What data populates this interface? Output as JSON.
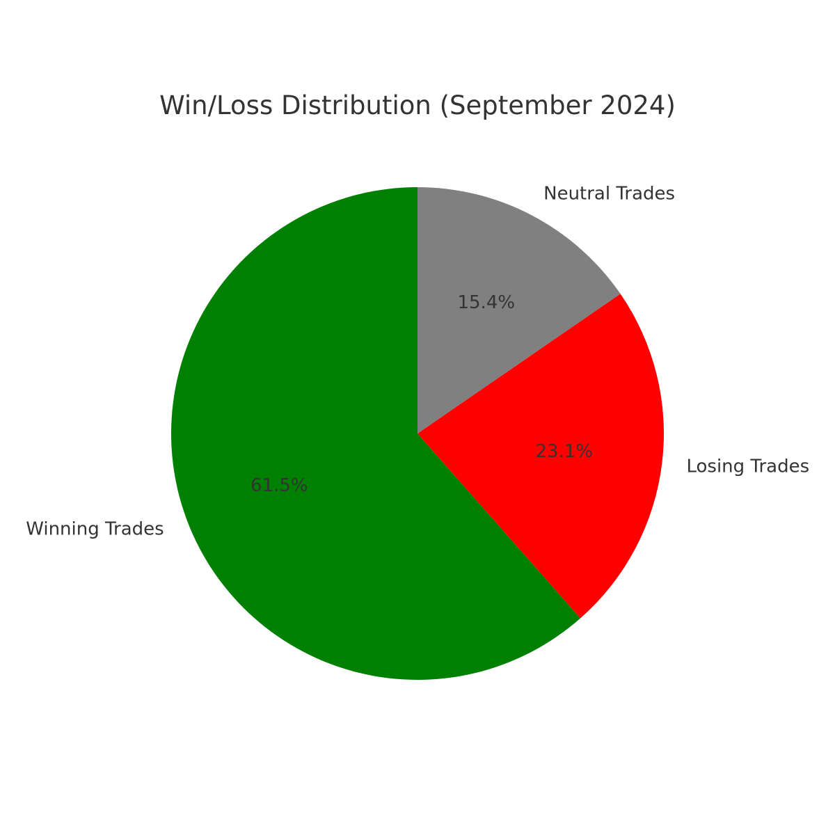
{
  "chart_data": {
    "type": "pie",
    "title": "Win/Loss Distribution (September 2024)",
    "slices": [
      {
        "label": "Winning Trades",
        "value": 61.5,
        "pct_label": "61.5%",
        "color": "#008000"
      },
      {
        "label": "Losing Trades",
        "value": 23.1,
        "pct_label": "23.1%",
        "color": "#ff0000"
      },
      {
        "label": "Neutral Trades",
        "value": 15.4,
        "pct_label": "15.4%",
        "color": "#808080"
      }
    ],
    "start_angle_deg": 90,
    "direction": "counterclockwise",
    "legend": "none"
  }
}
